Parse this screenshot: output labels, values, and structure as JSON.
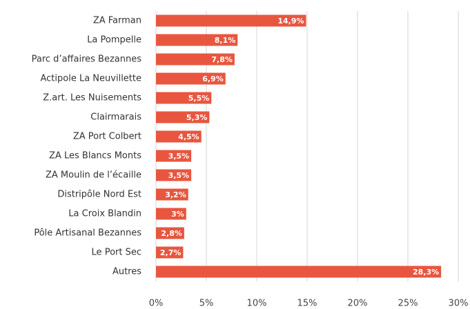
{
  "chart_data": {
    "type": "bar",
    "orientation": "horizontal",
    "categories": [
      "ZA Farman",
      "La Pompelle",
      "Parc d’affaires Bezannes",
      "Actipole La Neuvillette",
      "Z.art. Les Nuisements",
      "Clairmarais",
      "ZA Port Colbert",
      "ZA Les Blancs Monts",
      "ZA Moulin de l’écaille",
      "Distripôle Nord Est",
      "La Croix Blandin",
      "Pôle Artisanal Bezannes",
      "Le Port Sec",
      "Autres"
    ],
    "values": [
      14.9,
      8.1,
      7.8,
      6.9,
      5.5,
      5.3,
      4.5,
      3.5,
      3.5,
      3.2,
      3,
      2.8,
      2.7,
      28.3
    ],
    "value_labels": [
      "14,9%",
      "8,1%",
      "7,8%",
      "6,9%",
      "5,5%",
      "5,3%",
      "4,5%",
      "3,5%",
      "3,5%",
      "3,2%",
      "3%",
      "2,8%",
      "2,7%",
      "28,3%"
    ],
    "color": "#e8563f",
    "xlim": [
      0,
      30
    ],
    "xticks": [
      {
        "value": 0,
        "label": "0%"
      },
      {
        "value": 5,
        "label": "5%"
      },
      {
        "value": 10,
        "label": "10%"
      },
      {
        "value": 15,
        "label": "15%"
      },
      {
        "value": 20,
        "label": "20%"
      },
      {
        "value": 25,
        "label": "25%"
      },
      {
        "value": 30,
        "label": "30%"
      }
    ],
    "grid": true
  }
}
